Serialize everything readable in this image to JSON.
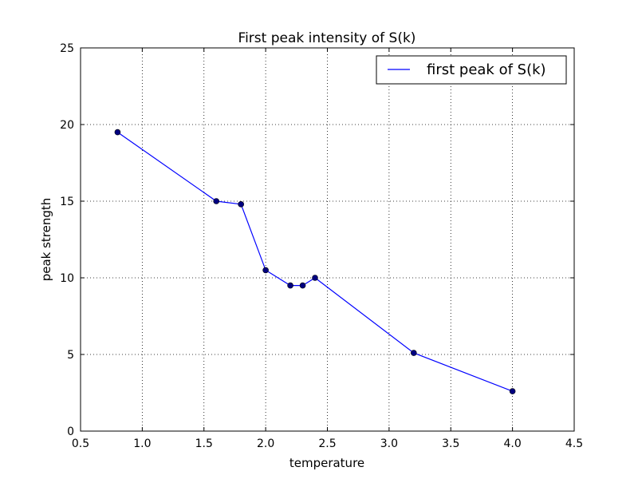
{
  "chart_data": {
    "type": "line",
    "title": "First peak intensity of S(k)",
    "xlabel": "temperature",
    "ylabel": "peak strength",
    "xlim": [
      0.5,
      4.5
    ],
    "ylim": [
      0,
      25
    ],
    "xticks": [
      "0.5",
      "1.0",
      "1.5",
      "2.0",
      "2.5",
      "3.0",
      "3.5",
      "4.0",
      "4.5"
    ],
    "yticks": [
      "0",
      "5",
      "10",
      "15",
      "20",
      "25"
    ],
    "grid": true,
    "legend_position": "top-right",
    "series": [
      {
        "name": "first peak of S(k)",
        "color": "#0000ff",
        "marker_color": "#000080",
        "x": [
          0.8,
          1.6,
          1.8,
          2.0,
          2.2,
          2.3,
          2.4,
          3.2,
          4.0
        ],
        "y": [
          19.5,
          15.0,
          14.8,
          10.5,
          9.5,
          9.5,
          10.0,
          5.1,
          2.6
        ]
      }
    ]
  }
}
